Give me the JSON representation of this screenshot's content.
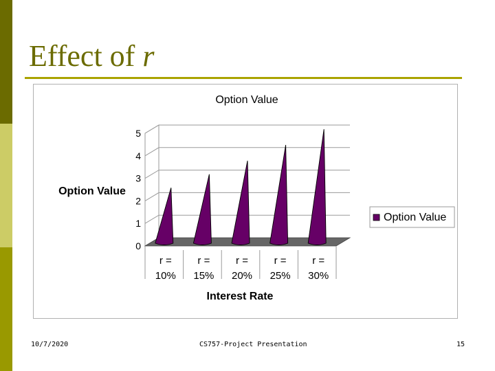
{
  "slide": {
    "title_text": "Effect of ",
    "title_var": "r",
    "footer_date": "10/7/2020",
    "footer_center": "CS757-Project Presentation",
    "page_number": "15"
  },
  "colors": {
    "accent": "#6b6b00",
    "bar_fill": "#660066",
    "floor": "#666666"
  },
  "chart_data": {
    "type": "bar",
    "title": "Option Value",
    "xlabel": "Interest Rate",
    "ylabel": "Option Value",
    "ylim": [
      0,
      5
    ],
    "yticks": [
      "0",
      "1",
      "2",
      "3",
      "4",
      "5"
    ],
    "categories": [
      [
        "r =",
        "10%"
      ],
      [
        "r =",
        "15%"
      ],
      [
        "r =",
        "20%"
      ],
      [
        "r =",
        "25%"
      ],
      [
        "r =",
        "30%"
      ]
    ],
    "series": [
      {
        "name": "Option Value",
        "values": [
          2.4,
          3.0,
          3.6,
          4.3,
          5.0
        ]
      }
    ],
    "legend": [
      "Option Value"
    ],
    "legend_position": "right",
    "grid": true
  }
}
